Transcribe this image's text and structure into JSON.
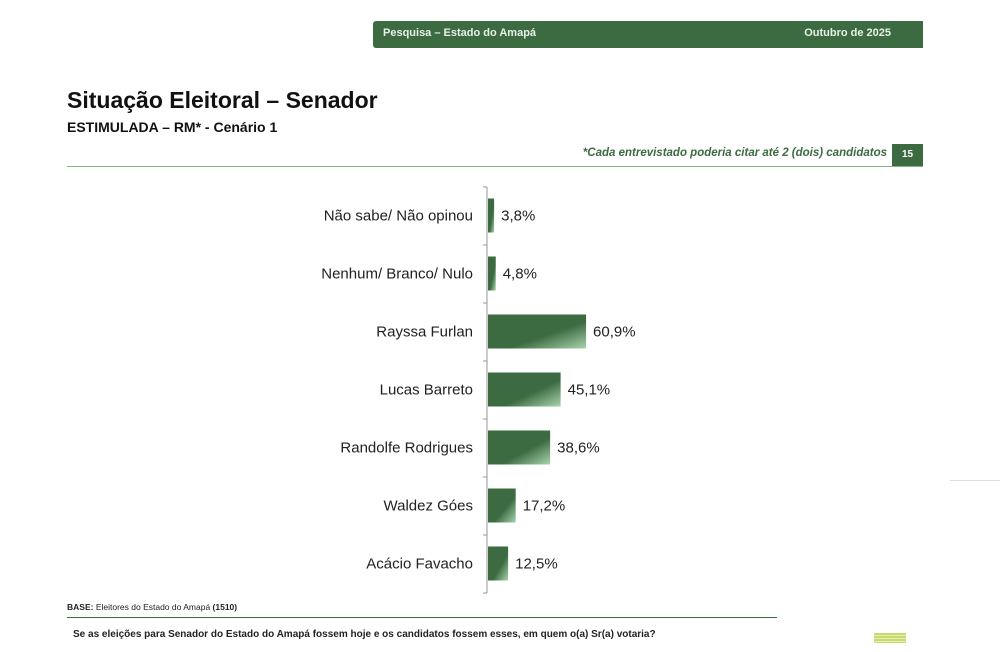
{
  "header": {
    "left": "Pesquisa – Estado do Amapá",
    "right": "Outubro de 2025"
  },
  "title": "Situação Eleitoral – Senador",
  "subtitle": "ESTIMULADA – RM* - Cenário 1",
  "note": "*Cada entrevistado poderia citar até 2 (dois) candidatos",
  "page_number": "15",
  "base": {
    "label": "BASE:",
    "text": " Eleitores do Estado do Amapá ",
    "count": "(1510)"
  },
  "question": "Se as eleições para Senador do Estado do Amapá fossem hoje e os candidatos fossem esses, em quem o(a) Sr(a) votaria?",
  "chart_data": {
    "type": "bar",
    "orientation": "horizontal",
    "categories": [
      "Não sabe/ Não opinou",
      "Nenhum/ Branco/ Nulo",
      "Rayssa Furlan",
      "Lucas Barreto",
      "Randolfe Rodrigues",
      "Waldez Góes",
      "Acácio Favacho"
    ],
    "values": [
      3.8,
      4.8,
      60.9,
      45.1,
      38.6,
      17.2,
      12.5
    ],
    "labels": [
      "3,8%",
      "4,8%",
      "60,9%",
      "45,1%",
      "38,6%",
      "17,2%",
      "12,5%"
    ],
    "unit": "%",
    "xlim": [
      0,
      100
    ],
    "color": "#3d6b41"
  }
}
